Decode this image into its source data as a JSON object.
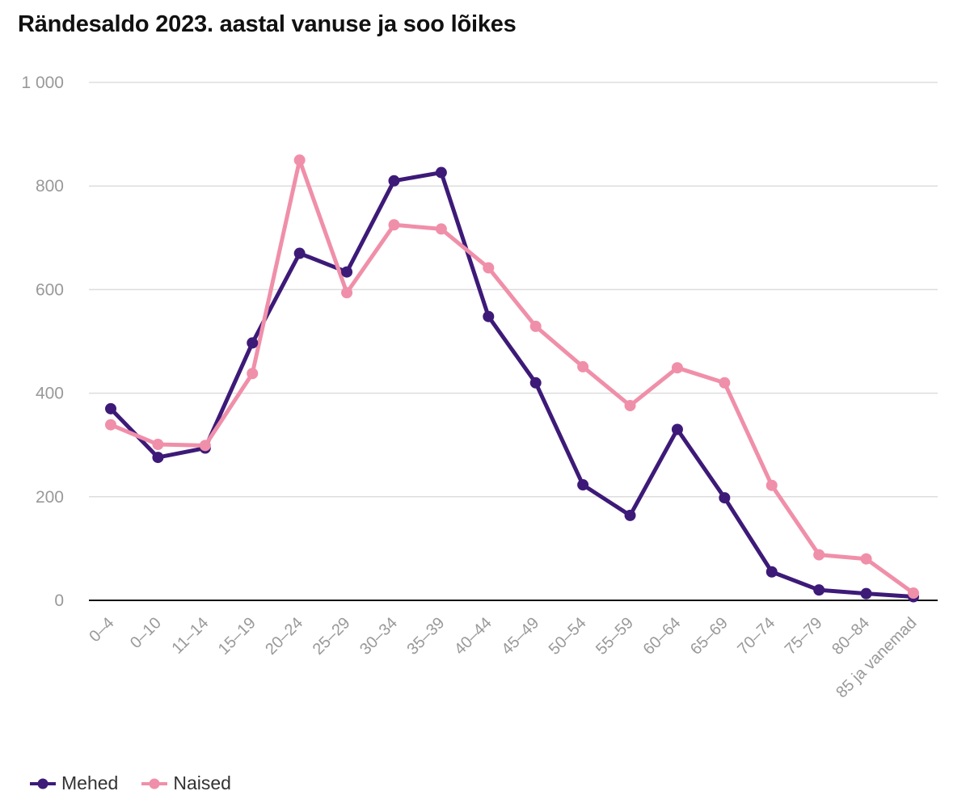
{
  "chart_data": {
    "type": "line",
    "title": "Rändesaldo 2023. aastal vanuse ja soo lõikes",
    "xlabel": "",
    "ylabel": "",
    "ylim": [
      0,
      1000
    ],
    "yticks": [
      0,
      200,
      400,
      600,
      800,
      1000
    ],
    "ytick_labels": [
      "0",
      "200",
      "400",
      "600",
      "800",
      "1 000"
    ],
    "categories": [
      "0–4",
      "0–10",
      "11–14",
      "15–19",
      "20–24",
      "25–29",
      "30–34",
      "35–39",
      "40–44",
      "45–49",
      "50–54",
      "55–59",
      "60–64",
      "65–69",
      "70–74",
      "75–79",
      "80–84",
      "85 ja vanemad"
    ],
    "series": [
      {
        "name": "Mehed",
        "color": "#3d1a78",
        "values": [
          370,
          276,
          294,
          497,
          670,
          634,
          810,
          826,
          548,
          420,
          223,
          164,
          330,
          198,
          55,
          20,
          13,
          7
        ]
      },
      {
        "name": "Naised",
        "color": "#f08fa9",
        "values": [
          339,
          301,
          299,
          438,
          850,
          594,
          725,
          717,
          642,
          529,
          451,
          376,
          449,
          420,
          222,
          88,
          80,
          14
        ]
      }
    ],
    "legend": "bottom-left",
    "grid": true
  }
}
